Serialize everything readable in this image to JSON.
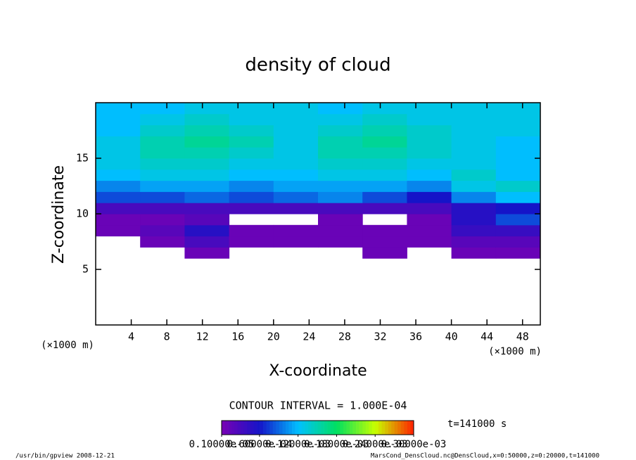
{
  "chart_data": {
    "type": "heatmap",
    "title": "density of cloud",
    "xlabel": "X-coordinate",
    "ylabel": "Z-coordinate",
    "x_unit": "(×1000 m)",
    "xlim": [
      0,
      50
    ],
    "xticks": [
      4,
      8,
      12,
      16,
      20,
      24,
      28,
      32,
      36,
      40,
      44,
      48
    ],
    "ylim": [
      0,
      20
    ],
    "yticks": [
      5,
      10,
      15
    ],
    "x_bins": [
      0,
      5,
      10,
      15,
      20,
      25,
      30,
      35,
      40,
      45,
      50
    ],
    "z_bins": [
      6,
      7,
      8,
      9,
      10,
      11,
      12,
      13,
      14,
      15,
      16,
      17,
      18,
      19,
      20
    ],
    "z": [
      [
        null,
        null,
        1e-05,
        null,
        null,
        null,
        1e-05,
        null,
        1e-05,
        1e-05
      ],
      [
        null,
        1e-05,
        3e-05,
        1e-05,
        1e-05,
        1e-05,
        1e-05,
        1e-05,
        2e-05,
        2e-05
      ],
      [
        1e-05,
        2e-05,
        5e-05,
        1e-05,
        1e-05,
        1e-05,
        1e-05,
        1e-05,
        4e-05,
        4e-05
      ],
      [
        1e-05,
        1e-05,
        2e-05,
        null,
        null,
        1e-05,
        null,
        1e-05,
        5e-05,
        8e-05
      ],
      [
        3e-05,
        3e-05,
        3e-05,
        3e-05,
        3e-05,
        3e-05,
        3e-05,
        3e-05,
        5e-05,
        6e-05
      ],
      [
        8e-05,
        8e-05,
        9e-05,
        8e-05,
        9e-05,
        0.0001,
        8e-05,
        6e-05,
        0.0001,
        0.00012
      ],
      [
        0.0001,
        0.00011,
        0.00011,
        0.0001,
        0.00011,
        0.00011,
        0.00011,
        0.0001,
        0.00013,
        0.00014
      ],
      [
        0.00012,
        0.00013,
        0.00013,
        0.00012,
        0.00012,
        0.00013,
        0.00013,
        0.00012,
        0.00014,
        0.00012
      ],
      [
        0.00013,
        0.00014,
        0.00014,
        0.00013,
        0.00013,
        0.00014,
        0.00014,
        0.00013,
        0.00013,
        0.00012
      ],
      [
        0.00013,
        0.00015,
        0.00015,
        0.00014,
        0.00013,
        0.00015,
        0.00015,
        0.00014,
        0.00013,
        0.00012
      ],
      [
        0.00013,
        0.00015,
        0.00016,
        0.00015,
        0.00013,
        0.00015,
        0.00016,
        0.00014,
        0.00013,
        0.00012
      ],
      [
        0.00012,
        0.00014,
        0.00015,
        0.00014,
        0.00013,
        0.00014,
        0.00015,
        0.00014,
        0.00013,
        0.00013
      ],
      [
        0.00012,
        0.00013,
        0.00014,
        0.00013,
        0.00013,
        0.00013,
        0.00014,
        0.00013,
        0.00013,
        0.00013
      ],
      [
        0.00012,
        0.00012,
        0.00013,
        0.00013,
        0.00013,
        0.00012,
        0.00013,
        0.00013,
        0.00013,
        0.00013
      ]
    ],
    "colormap": [
      "#7800b4",
      "#1414c8",
      "#00c0ff",
      "#00e060",
      "#c8ff00",
      "#ff2000"
    ],
    "clim": [
      1e-06,
      0.0003
    ],
    "cticks": [
      {
        "value": 1e-06,
        "label": "0.10000e-05"
      },
      {
        "value": 6e-05,
        "label": "0.60000e-04"
      },
      {
        "value": 0.00012,
        "label": "0.12000e-03"
      },
      {
        "value": 0.00018,
        "label": "0.18000e-03"
      },
      {
        "value": 0.00024,
        "label": "0.24000e-03"
      },
      {
        "value": 0.0003,
        "label": "0.30000e-03"
      }
    ],
    "contour_interval": "CONTOUR INTERVAL = 1.000E-04",
    "time_label": "t=141000 s",
    "footer_left": "/usr/bin/gpview   2008-12-21",
    "footer_right": "MarsCond_DensCloud.nc@DensCloud,x=0:50000,z=0:20000,t=141000"
  }
}
